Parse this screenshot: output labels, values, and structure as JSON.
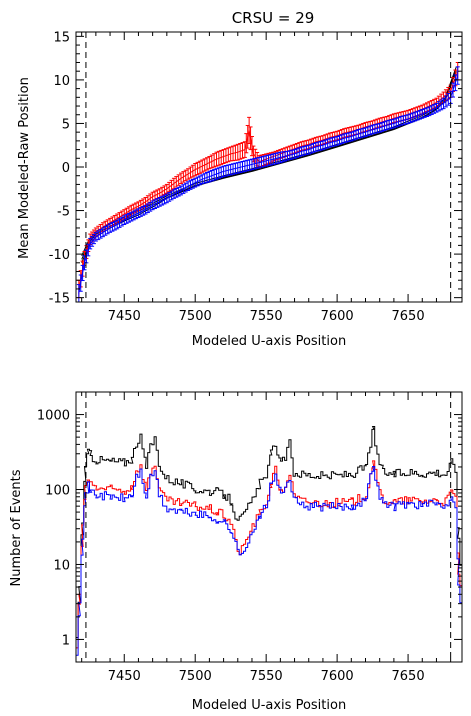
{
  "figure_title": "CRSU = 29",
  "chart_data": [
    {
      "type": "scatter",
      "title": "CRSU = 29",
      "xlabel": "Modeled U-axis Position",
      "ylabel": "Mean Modeled-Raw Position",
      "xlim": [
        7416,
        7688
      ],
      "ylim": [
        -15.5,
        15.5
      ],
      "xticks": [
        7450,
        7500,
        7550,
        7600,
        7650
      ],
      "yticks": [
        -15,
        -10,
        -5,
        0,
        5,
        10,
        15
      ],
      "vlines": [
        7423,
        7680
      ],
      "colors": {
        "model": "#000000",
        "red": "#ff0000",
        "blue": "#0000ff"
      },
      "model_curves": [
        {
          "x": [
            7420,
            7425,
            7430,
            7440,
            7450,
            7460,
            7470,
            7480,
            7500,
            7520,
            7540,
            7560,
            7580,
            7600,
            7620,
            7640,
            7660,
            7670,
            7676,
            7680,
            7684
          ],
          "values": [
            -11.0,
            -9.0,
            -8.0,
            -7.0,
            -6.2,
            -5.5,
            -4.6,
            -3.6,
            -2.2,
            -1.3,
            -0.5,
            0.4,
            1.3,
            2.3,
            3.3,
            4.3,
            5.6,
            6.6,
            7.6,
            9.3,
            11.0
          ]
        },
        {
          "x": [
            7420,
            7425,
            7430,
            7440,
            7450,
            7460,
            7470,
            7480,
            7500,
            7520,
            7540,
            7560,
            7580,
            7600,
            7620,
            7640,
            7660,
            7670,
            7676,
            7680,
            7684
          ],
          "values": [
            -10.6,
            -8.7,
            -7.7,
            -6.8,
            -6.0,
            -5.3,
            -4.4,
            -3.5,
            -2.1,
            -1.2,
            -0.4,
            0.5,
            1.4,
            2.4,
            3.4,
            4.4,
            5.7,
            6.7,
            7.7,
            9.5,
            11.2
          ]
        },
        {
          "x": [
            7420,
            7425,
            7430,
            7440,
            7450,
            7460,
            7470,
            7480,
            7500,
            7520,
            7540,
            7560,
            7580,
            7600,
            7620,
            7640,
            7660,
            7670,
            7676,
            7680,
            7684
          ],
          "values": [
            -10.2,
            -8.4,
            -7.4,
            -6.5,
            -5.8,
            -5.1,
            -4.2,
            -3.3,
            -1.9,
            -1.0,
            -0.2,
            0.7,
            1.6,
            2.6,
            3.6,
            4.6,
            5.9,
            6.9,
            7.9,
            9.7,
            11.5
          ]
        }
      ],
      "series": [
        {
          "color": "red",
          "x": [
            7418,
            7422,
            7426,
            7430,
            7435,
            7440,
            7445,
            7450,
            7455,
            7460,
            7465,
            7470,
            7475,
            7480,
            7485,
            7490,
            7495,
            7500,
            7505,
            7510,
            7515,
            7520,
            7525,
            7530,
            7535,
            7538,
            7541,
            7545,
            7550,
            7555,
            7560,
            7565,
            7570,
            7575,
            7580,
            7585,
            7590,
            7595,
            7600,
            7605,
            7610,
            7615,
            7620,
            7625,
            7630,
            7635,
            7640,
            7645,
            7650,
            7655,
            7660,
            7665,
            7670,
            7675,
            7680,
            7685
          ],
          "values": [
            -14.0,
            -10.5,
            -8.3,
            -7.5,
            -6.9,
            -6.4,
            -5.9,
            -5.4,
            -4.9,
            -4.5,
            -4.0,
            -3.4,
            -3.0,
            -2.5,
            -1.9,
            -1.3,
            -0.8,
            -0.3,
            0.1,
            0.5,
            0.9,
            1.2,
            1.5,
            1.7,
            2.0,
            4.2,
            1.5,
            0.6,
            0.9,
            1.2,
            1.5,
            1.8,
            2.1,
            2.4,
            2.6,
            2.9,
            3.1,
            3.4,
            3.6,
            3.9,
            4.1,
            4.3,
            4.6,
            4.8,
            5.1,
            5.3,
            5.6,
            5.8,
            6.0,
            6.3,
            6.6,
            7.0,
            7.4,
            8.0,
            8.7,
            11.0
          ],
          "errors": [
            1.0,
            0.8,
            0.6,
            0.5,
            0.5,
            0.5,
            0.5,
            0.5,
            0.5,
            0.5,
            0.5,
            0.5,
            0.5,
            0.5,
            0.6,
            0.6,
            0.6,
            0.7,
            0.7,
            0.7,
            0.8,
            0.8,
            0.8,
            0.9,
            0.9,
            1.5,
            0.9,
            0.7,
            0.6,
            0.5,
            0.5,
            0.5,
            0.5,
            0.5,
            0.5,
            0.5,
            0.5,
            0.5,
            0.5,
            0.5,
            0.5,
            0.5,
            0.5,
            0.5,
            0.5,
            0.5,
            0.5,
            0.5,
            0.5,
            0.5,
            0.5,
            0.5,
            0.5,
            0.6,
            0.7,
            1.0
          ]
        },
        {
          "color": "blue",
          "x": [
            7418,
            7422,
            7426,
            7430,
            7435,
            7440,
            7445,
            7450,
            7455,
            7460,
            7465,
            7470,
            7475,
            7480,
            7485,
            7490,
            7495,
            7500,
            7505,
            7510,
            7515,
            7520,
            7525,
            7530,
            7535,
            7540,
            7545,
            7550,
            7555,
            7560,
            7565,
            7570,
            7575,
            7580,
            7585,
            7590,
            7595,
            7600,
            7605,
            7610,
            7615,
            7620,
            7625,
            7630,
            7635,
            7640,
            7645,
            7650,
            7655,
            7660,
            7665,
            7670,
            7675,
            7680,
            7685
          ],
          "values": [
            -14.5,
            -11.0,
            -8.8,
            -8.0,
            -7.5,
            -7.0,
            -6.6,
            -6.1,
            -5.7,
            -5.3,
            -4.9,
            -4.4,
            -4.0,
            -3.6,
            -3.1,
            -2.7,
            -2.2,
            -1.8,
            -1.4,
            -1.1,
            -0.8,
            -0.5,
            -0.3,
            -0.1,
            0.1,
            0.3,
            0.5,
            0.7,
            0.9,
            1.1,
            1.3,
            1.5,
            1.8,
            2.0,
            2.3,
            2.5,
            2.8,
            3.0,
            3.3,
            3.5,
            3.8,
            4.0,
            4.3,
            4.5,
            4.8,
            5.0,
            5.3,
            5.5,
            5.8,
            6.1,
            6.4,
            6.8,
            7.3,
            8.0,
            10.5
          ],
          "errors": [
            1.0,
            0.8,
            0.6,
            0.5,
            0.5,
            0.5,
            0.5,
            0.5,
            0.5,
            0.5,
            0.5,
            0.5,
            0.5,
            0.5,
            0.5,
            0.5,
            0.5,
            0.5,
            0.5,
            0.6,
            0.6,
            0.6,
            0.6,
            0.6,
            0.6,
            0.6,
            0.6,
            0.6,
            0.6,
            0.6,
            0.5,
            0.5,
            0.5,
            0.5,
            0.5,
            0.5,
            0.5,
            0.5,
            0.5,
            0.5,
            0.5,
            0.5,
            0.5,
            0.5,
            0.5,
            0.5,
            0.5,
            0.5,
            0.5,
            0.5,
            0.5,
            0.5,
            0.6,
            0.7,
            1.0
          ]
        }
      ]
    },
    {
      "type": "line",
      "xlabel": "Modeled U-axis Position",
      "ylabel": "Number of Events",
      "xlim": [
        7416,
        7688
      ],
      "ylim": [
        0.5,
        2000
      ],
      "yscale": "log",
      "xticks": [
        7450,
        7500,
        7550,
        7600,
        7650
      ],
      "yticks": [
        1,
        10,
        100,
        1000
      ],
      "ytick_labels": [
        "1",
        "10",
        "100",
        "1000"
      ],
      "vlines": [
        7423,
        7680
      ],
      "colors": {
        "black": "#000000",
        "red": "#ff0000",
        "blue": "#0000ff"
      },
      "series": [
        {
          "color": "black",
          "x": [
            7416,
            7418,
            7420,
            7422,
            7424,
            7426,
            7430,
            7440,
            7450,
            7455,
            7458,
            7461,
            7465,
            7468,
            7471,
            7474,
            7477,
            7480,
            7490,
            7500,
            7510,
            7515,
            7520,
            7525,
            7528,
            7531,
            7534,
            7537,
            7540,
            7545,
            7548,
            7551,
            7553,
            7556,
            7560,
            7563,
            7566,
            7569,
            7575,
            7590,
            7610,
            7620,
            7623,
            7625,
            7628,
            7632,
            7640,
            7650,
            7660,
            7670,
            7676,
            7680,
            7683,
            7685,
            7688
          ],
          "values": [
            1.0,
            5.0,
            40,
            180,
            330,
            280,
            250,
            240,
            230,
            260,
            420,
            480,
            200,
            380,
            480,
            230,
            160,
            140,
            120,
            100,
            95,
            92,
            85,
            70,
            45,
            40,
            45,
            60,
            70,
            120,
            140,
            190,
            300,
            420,
            210,
            270,
            410,
            170,
            160,
            150,
            160,
            200,
            420,
            620,
            270,
            170,
            160,
            170,
            165,
            170,
            160,
            230,
            180,
            20,
            5
          ]
        },
        {
          "color": "red",
          "x": [
            7416,
            7418,
            7420,
            7422,
            7424,
            7426,
            7430,
            7440,
            7450,
            7455,
            7458,
            7461,
            7465,
            7468,
            7471,
            7474,
            7477,
            7480,
            7490,
            7500,
            7510,
            7515,
            7520,
            7525,
            7528,
            7531,
            7534,
            7537,
            7540,
            7545,
            7548,
            7551,
            7553,
            7556,
            7560,
            7563,
            7566,
            7569,
            7575,
            7590,
            7610,
            7620,
            7623,
            7625,
            7628,
            7632,
            7640,
            7650,
            7660,
            7670,
            7676,
            7680,
            7683,
            7685,
            7688
          ],
          "values": [
            0.8,
            4.0,
            30,
            100,
            140,
            120,
            105,
            100,
            95,
            110,
            180,
            200,
            100,
            170,
            220,
            105,
            80,
            70,
            65,
            60,
            55,
            50,
            45,
            35,
            20,
            14,
            18,
            25,
            32,
            48,
            60,
            80,
            130,
            180,
            90,
            110,
            170,
            80,
            70,
            65,
            68,
            85,
            160,
            240,
            110,
            72,
            68,
            72,
            70,
            72,
            68,
            95,
            75,
            8,
            3
          ]
        },
        {
          "color": "blue",
          "x": [
            7416,
            7418,
            7420,
            7422,
            7424,
            7426,
            7430,
            7440,
            7450,
            7455,
            7458,
            7461,
            7465,
            7468,
            7471,
            7474,
            7477,
            7480,
            7490,
            7500,
            7510,
            7515,
            7520,
            7525,
            7528,
            7531,
            7534,
            7537,
            7540,
            7545,
            7548,
            7551,
            7553,
            7556,
            7560,
            7563,
            7566,
            7569,
            7575,
            7590,
            7610,
            7620,
            7623,
            7625,
            7628,
            7632,
            7640,
            7650,
            7660,
            7670,
            7676,
            7680,
            7683,
            7685,
            7688
          ],
          "values": [
            0.7,
            3.5,
            25,
            80,
            110,
            95,
            85,
            80,
            75,
            85,
            150,
            170,
            80,
            140,
            180,
            85,
            65,
            55,
            50,
            48,
            42,
            40,
            36,
            28,
            18,
            13,
            16,
            22,
            28,
            42,
            55,
            75,
            120,
            160,
            80,
            100,
            150,
            70,
            62,
            58,
            60,
            75,
            150,
            220,
            100,
            65,
            60,
            65,
            62,
            65,
            60,
            85,
            65,
            6,
            2
          ]
        }
      ]
    }
  ]
}
